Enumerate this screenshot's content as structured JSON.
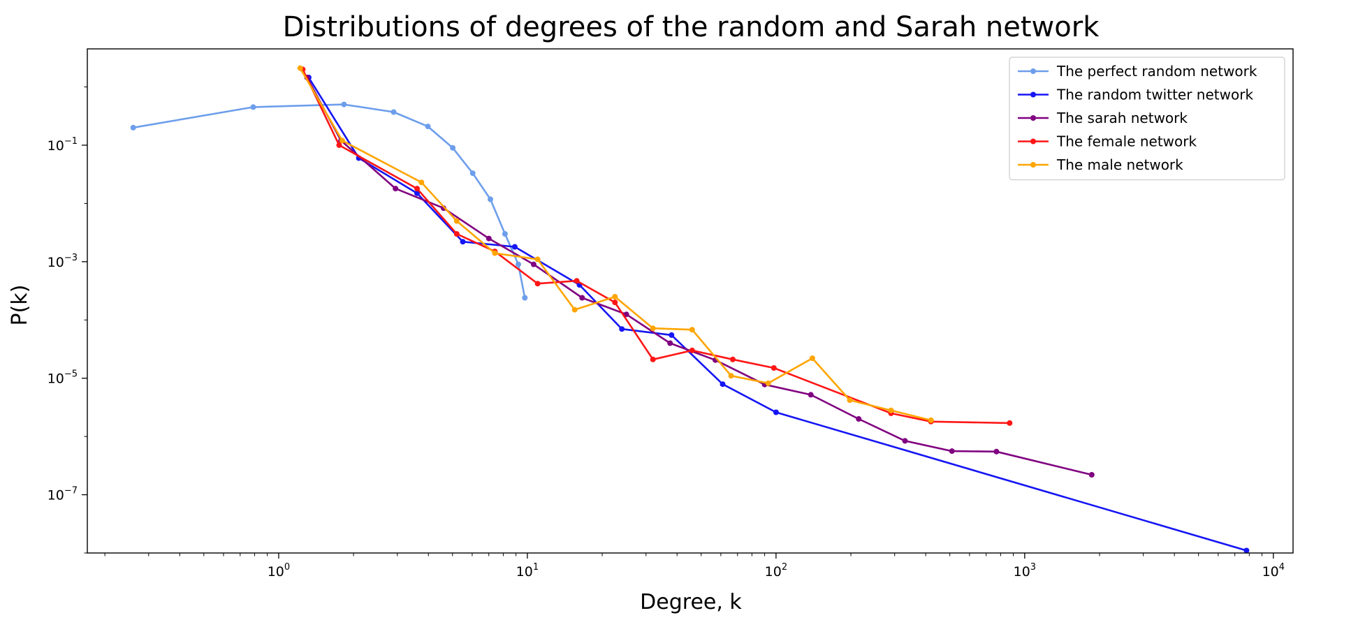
{
  "chart_data": {
    "type": "line",
    "title": "Distributions of degrees of the random and Sarah network",
    "xlabel": "Degree, k",
    "ylabel": "P(k)",
    "xscale": "log",
    "yscale": "log",
    "xlim": [
      0.17,
      12000
    ],
    "ylim": [
      1e-08,
      4.5
    ],
    "grid": false,
    "legend_position": "top-right",
    "x_ticks": [
      {
        "base": "10",
        "exp": "0",
        "value": 1
      },
      {
        "base": "10",
        "exp": "1",
        "value": 10
      },
      {
        "base": "10",
        "exp": "2",
        "value": 100
      },
      {
        "base": "10",
        "exp": "3",
        "value": 1000
      },
      {
        "base": "10",
        "exp": "4",
        "value": 10000
      }
    ],
    "y_ticks": [
      {
        "base": "10",
        "exp": "−1",
        "value": 0.1
      },
      {
        "base": "10",
        "exp": "−3",
        "value": 0.001
      },
      {
        "base": "10",
        "exp": "−5",
        "value": 1e-05
      },
      {
        "base": "10",
        "exp": "−7",
        "value": 1e-07
      }
    ],
    "series": [
      {
        "name": "The perfect random network",
        "color": "#6d9eeb",
        "x": [
          0.26,
          0.79,
          1.83,
          2.9,
          3.98,
          5.01,
          6.03,
          7.1,
          8.13,
          9.2,
          9.77
        ],
        "y": [
          0.2,
          0.45,
          0.5,
          0.37,
          0.21,
          0.09,
          0.033,
          0.0118,
          0.003,
          0.0009,
          0.00024
        ]
      },
      {
        "name": "The random twitter network",
        "color": "#1515f5",
        "x": [
          1.32,
          2.1,
          3.6,
          5.5,
          8.9,
          16.2,
          24.0,
          38.0,
          61.0,
          100.0,
          7800.0
        ],
        "y": [
          1.45,
          0.06,
          0.015,
          0.0022,
          0.0018,
          0.0004,
          7e-05,
          5.5e-05,
          7.9e-06,
          2.6e-06,
          1.1e-08
        ]
      },
      {
        "name": "The sarah network",
        "color": "#800080",
        "x": [
          1.3,
          1.78,
          2.95,
          4.6,
          7.0,
          10.6,
          16.6,
          25.0,
          37.5,
          57.0,
          90.0,
          138.0,
          215.0,
          330.0,
          510.0,
          770.0,
          1860.0
        ],
        "y": [
          1.45,
          0.12,
          0.018,
          0.0083,
          0.0025,
          0.0009,
          0.00024,
          0.000125,
          4e-05,
          2.05e-05,
          7.8e-06,
          5.2e-06,
          2e-06,
          8.4e-07,
          5.6e-07,
          5.5e-07,
          2.2e-07
        ]
      },
      {
        "name": "The female network",
        "color": "#ff1515",
        "x": [
          1.25,
          1.75,
          3.6,
          5.2,
          7.4,
          11.0,
          15.8,
          22.5,
          32.0,
          46.0,
          67.0,
          98.0,
          290.0,
          420.0,
          870.0
        ],
        "y": [
          2.0,
          0.1,
          0.018,
          0.003,
          0.0015,
          0.00042,
          0.00047,
          0.0002,
          2.1e-05,
          3e-05,
          2.1e-05,
          1.5e-05,
          2.5e-06,
          1.8e-06,
          1.7e-06
        ]
      },
      {
        "name": "The male network",
        "color": "#ffa500",
        "x": [
          1.22,
          1.8,
          3.75,
          5.2,
          7.4,
          11.0,
          15.5,
          22.5,
          32.0,
          46.0,
          66.0,
          93.0,
          140.0,
          198.0,
          290.0,
          420.0
        ],
        "y": [
          2.1,
          0.12,
          0.023,
          0.005,
          0.0014,
          0.0011,
          0.00015,
          0.00025,
          7.2e-05,
          6.8e-05,
          1.1e-05,
          8.2e-06,
          2.2e-05,
          4.2e-06,
          2.8e-06,
          1.9e-06
        ]
      }
    ]
  }
}
